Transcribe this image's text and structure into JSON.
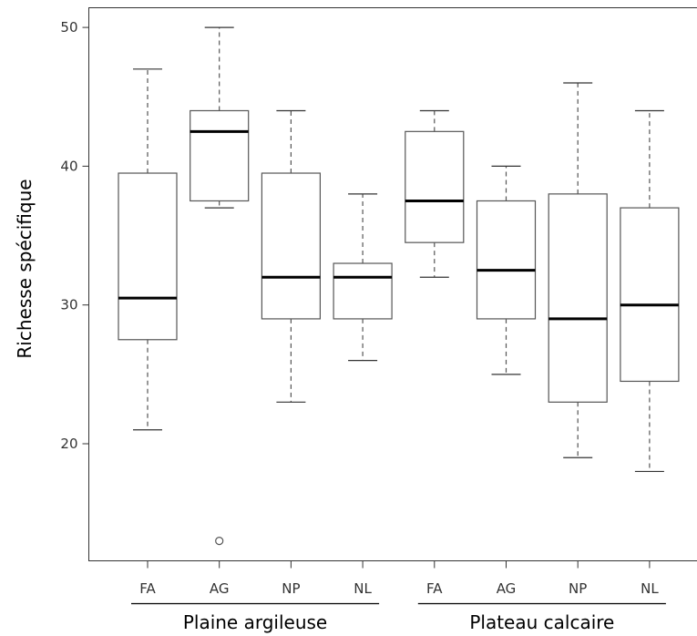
{
  "chart_data": {
    "type": "boxplot",
    "ylabel": "Richesse spécifique",
    "ylim": [
      10,
      52
    ],
    "yticks": [
      20,
      30,
      40,
      50
    ],
    "groups": [
      {
        "label": "Plaine argileuse",
        "categories": [
          "FA",
          "AG",
          "NP",
          "NL"
        ]
      },
      {
        "label": "Plateau calcaire",
        "categories": [
          "FA",
          "AG",
          "NP",
          "NL"
        ]
      }
    ],
    "boxes": [
      {
        "group": "Plaine argileuse",
        "category": "FA",
        "whisker_low": 21,
        "q1": 27.5,
        "median": 30.5,
        "q3": 39.5,
        "whisker_high": 47,
        "outliers": []
      },
      {
        "group": "Plaine argileuse",
        "category": "AG",
        "whisker_low": 37,
        "q1": 37.5,
        "median": 42.5,
        "q3": 44,
        "whisker_high": 50,
        "outliers": [
          13
        ]
      },
      {
        "group": "Plaine argileuse",
        "category": "NP",
        "whisker_low": 23,
        "q1": 29,
        "median": 32,
        "q3": 39.5,
        "whisker_high": 44,
        "outliers": []
      },
      {
        "group": "Plaine argileuse",
        "category": "NL",
        "whisker_low": 26,
        "q1": 29,
        "median": 32,
        "q3": 33,
        "whisker_high": 38,
        "outliers": []
      },
      {
        "group": "Plateau calcaire",
        "category": "FA",
        "whisker_low": 32,
        "q1": 34.5,
        "median": 37.5,
        "q3": 42.5,
        "whisker_high": 44,
        "outliers": []
      },
      {
        "group": "Plateau calcaire",
        "category": "AG",
        "whisker_low": 25,
        "q1": 29,
        "median": 32.5,
        "q3": 37.5,
        "whisker_high": 40,
        "outliers": []
      },
      {
        "group": "Plateau calcaire",
        "category": "NP",
        "whisker_low": 19,
        "q1": 23,
        "median": 29,
        "q3": 38,
        "whisker_high": 46,
        "outliers": []
      },
      {
        "group": "Plateau calcaire",
        "category": "NL",
        "whisker_low": 18,
        "q1": 24.5,
        "median": 30,
        "q3": 37,
        "whisker_high": 44,
        "outliers": []
      }
    ],
    "grid": false,
    "colors": {
      "box_stroke": "#555555",
      "median": "#000000",
      "whisker": "#555555",
      "background": "#ffffff"
    }
  }
}
